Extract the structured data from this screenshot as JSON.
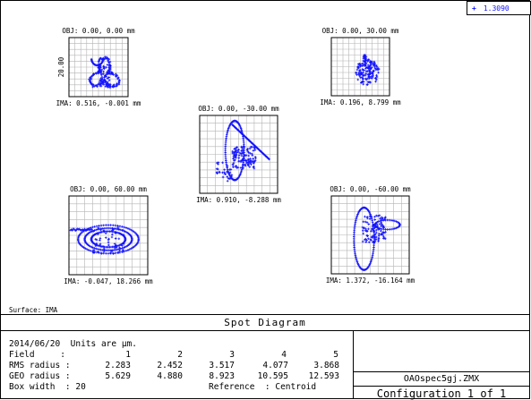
{
  "legend": {
    "marker": "+",
    "wavelength": "1.3090",
    "color": "#1414ff"
  },
  "surface_label": "Surface: IMA",
  "scale_label": "20.00",
  "fields": [
    {
      "id": "f1",
      "obj": "OBJ: 0.00, 0.00 mm",
      "ima": "IMA: 0.516, -0.001 mm",
      "shape": "a"
    },
    {
      "id": "f2",
      "obj": "OBJ: 0.00, 30.00 mm",
      "ima": "IMA: 0.196, 8.799 mm",
      "shape": "b"
    },
    {
      "id": "f3",
      "obj": "OBJ: 0.00, -30.00 mm",
      "ima": "IMA: 0.910, -8.288 mm",
      "shape": "c"
    },
    {
      "id": "f4",
      "obj": "OBJ: 0.00, 60.00 mm",
      "ima": "IMA: -0.047, 18.266 mm",
      "shape": "d"
    },
    {
      "id": "f5",
      "obj": "OBJ: 0.00, -60.00 mm",
      "ima": "IMA: 1.372, -16.164 mm",
      "shape": "e"
    }
  ],
  "panel": {
    "title": "Spot Diagram",
    "date_units": "2014/06/20  Units are µm.",
    "field_label": "Field     :",
    "field_values": [
      "1",
      "2",
      "3",
      "4",
      "5"
    ],
    "rms_label": "RMS radius :",
    "rms_values": [
      "2.283",
      "2.452",
      "3.517",
      "4.077",
      "3.868"
    ],
    "geo_label": "GEO radius :",
    "geo_values": [
      "5.629",
      "4.880",
      "8.923",
      "10.595",
      "12.593"
    ],
    "box_label": "Box width  : 20",
    "reference": "Reference  : Centroid",
    "file_name": "OAOspec5gj.ZMX",
    "configuration": "Configuration 1 of 1"
  },
  "spot_color": "#1414ff",
  "grid_color": "#b4b4b4"
}
